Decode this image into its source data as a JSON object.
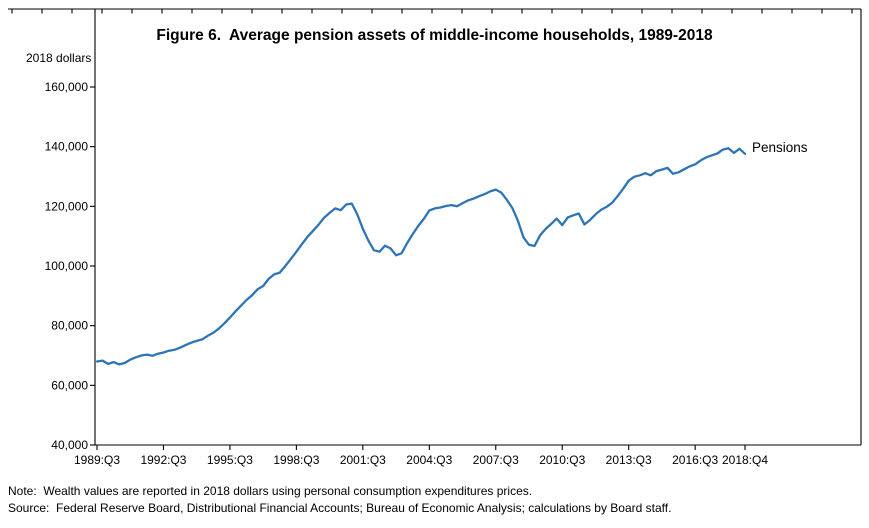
{
  "figure": {
    "title": "Figure 6.  Average pension assets of middle-income households, 1989-2018",
    "y_axis_unit_label": "2018 dollars",
    "series_label": "Pensions",
    "note": "Note:  Wealth values are reported in 2018 dollars using personal consumption expenditures prices.",
    "source": "Source:  Federal Reserve Board, Distributional Financial Accounts; Bureau of Economic Analysis; calculations by Board staff."
  },
  "chart_data": {
    "type": "line",
    "title": "Figure 6.  Average pension assets of middle-income households, 1989-2018",
    "xlabel": "",
    "ylabel": "2018 dollars",
    "ylim": [
      40000,
      160000
    ],
    "y_ticks": [
      40000,
      60000,
      80000,
      100000,
      120000,
      140000,
      160000
    ],
    "y_tick_labels": [
      "40,000",
      "60,000",
      "80,000",
      "100,000",
      "120,000",
      "140,000",
      "160,000"
    ],
    "x_tick_labels": [
      "1989:Q3",
      "1992:Q3",
      "1995:Q3",
      "1998:Q3",
      "2001:Q3",
      "2004:Q3",
      "2007:Q3",
      "2010:Q3",
      "2013:Q3",
      "2016:Q3",
      "2018:Q4"
    ],
    "x_tick_indices": [
      0,
      12,
      24,
      36,
      48,
      60,
      72,
      84,
      96,
      108,
      117
    ],
    "x_start": "1989:Q3",
    "x_end": "2018:Q4",
    "frequency": "quarterly",
    "grid": false,
    "legend_position": "right-of-line-end",
    "line_color": "#2E75B6",
    "series": [
      {
        "name": "Pensions",
        "values": [
          68000,
          68300,
          67200,
          67800,
          67000,
          67500,
          68600,
          69400,
          70000,
          70300,
          69900,
          70600,
          71000,
          71600,
          71900,
          72600,
          73500,
          74300,
          74900,
          75400,
          76600,
          77600,
          79000,
          80800,
          82700,
          84800,
          86700,
          88600,
          90200,
          92200,
          93300,
          95700,
          97200,
          97800,
          100000,
          102300,
          104800,
          107300,
          109800,
          111800,
          113800,
          116200,
          117800,
          119300,
          118700,
          120600,
          120900,
          117300,
          112500,
          108500,
          105300,
          104800,
          106800,
          105900,
          103600,
          104300,
          107700,
          110700,
          113400,
          115800,
          118600,
          119300,
          119600,
          120100,
          120400,
          120000,
          121000,
          122000,
          122600,
          123400,
          124100,
          125000,
          125600,
          124600,
          122200,
          119400,
          115200,
          109600,
          107100,
          106700,
          110300,
          112400,
          114100,
          115900,
          113700,
          116300,
          117000,
          117600,
          113900,
          115400,
          117300,
          118800,
          119800,
          121200,
          123400,
          125900,
          128600,
          129900,
          130400,
          131100,
          130400,
          131800,
          132300,
          132900,
          130900,
          131400,
          132400,
          133400,
          134100,
          135400,
          136400,
          137100,
          137700,
          139000,
          139500,
          137900,
          139300,
          137600
        ]
      }
    ]
  }
}
